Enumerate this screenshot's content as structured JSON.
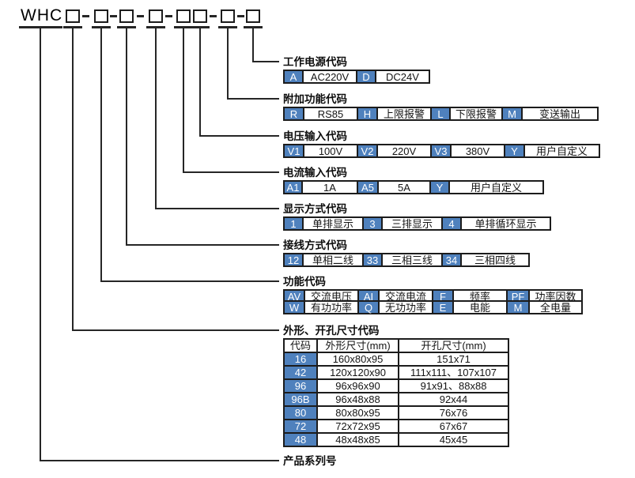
{
  "diagram": {
    "prefix": "WHC",
    "box_count": 8
  },
  "sections": [
    {
      "label": "工作电源代码",
      "cells": [
        {
          "code": "A",
          "text": "AC220V"
        },
        {
          "code": "D",
          "text": "DC24V"
        }
      ]
    },
    {
      "label": "附加功能代码",
      "cells": [
        {
          "code": "R",
          "text": "RS85"
        },
        {
          "code": "H",
          "text": "上限报警"
        },
        {
          "code": "L",
          "text": "下限报警"
        },
        {
          "code": "M",
          "text": "变送输出"
        }
      ]
    },
    {
      "label": "电压输入代码",
      "cells": [
        {
          "code": "V1",
          "text": "100V"
        },
        {
          "code": "V2",
          "text": "220V"
        },
        {
          "code": "V3",
          "text": "380V"
        },
        {
          "code": "Y",
          "text": "用户自定义"
        }
      ]
    },
    {
      "label": "电流输入代码",
      "cells": [
        {
          "code": "A1",
          "text": "1A"
        },
        {
          "code": "A5",
          "text": "5A"
        },
        {
          "code": "Y",
          "text": "用户自定义"
        }
      ]
    },
    {
      "label": "显示方式代码",
      "cells": [
        {
          "code": "1",
          "text": "单排显示"
        },
        {
          "code": "3",
          "text": "三排显示"
        },
        {
          "code": "4",
          "text": "单排循环显示"
        }
      ]
    },
    {
      "label": "接线方式代码",
      "cells": [
        {
          "code": "12",
          "text": "单相二线"
        },
        {
          "code": "33",
          "text": "三相三线"
        },
        {
          "code": "34",
          "text": "三相四线"
        }
      ]
    },
    {
      "label": "功能代码",
      "rows": [
        [
          {
            "code": "AV",
            "text": "交流电压"
          },
          {
            "code": "AI",
            "text": "交流电流"
          },
          {
            "code": "F",
            "text": "频率"
          },
          {
            "code": "PF",
            "text": "功率因数"
          }
        ],
        [
          {
            "code": "W",
            "text": "有功功率"
          },
          {
            "code": "Q",
            "text": "无功功率"
          },
          {
            "code": "E",
            "text": "电能"
          },
          {
            "code": "M",
            "text": "全电量"
          }
        ]
      ]
    }
  ],
  "dimension_table": {
    "label": "外形、开孔尺寸代码",
    "headers": [
      "代码",
      "外形尺寸(mm)",
      "开孔尺寸(mm)"
    ],
    "rows": [
      [
        "16",
        "160x80x95",
        "151x71"
      ],
      [
        "42",
        "120x120x90",
        "111x111、107x107"
      ],
      [
        "96",
        "96x96x90",
        "91x91、88x88"
      ],
      [
        "96B",
        "96x48x88",
        "92x44"
      ],
      [
        "80",
        "80x80x95",
        "76x76"
      ],
      [
        "72",
        "72x72x95",
        "67x67"
      ],
      [
        "48",
        "48x48x85",
        "45x45"
      ]
    ]
  },
  "series": {
    "label": "产品系列号"
  },
  "colors": {
    "code_blue": "#4f81bd",
    "line": "#262626",
    "border": "#1c1c1c"
  }
}
